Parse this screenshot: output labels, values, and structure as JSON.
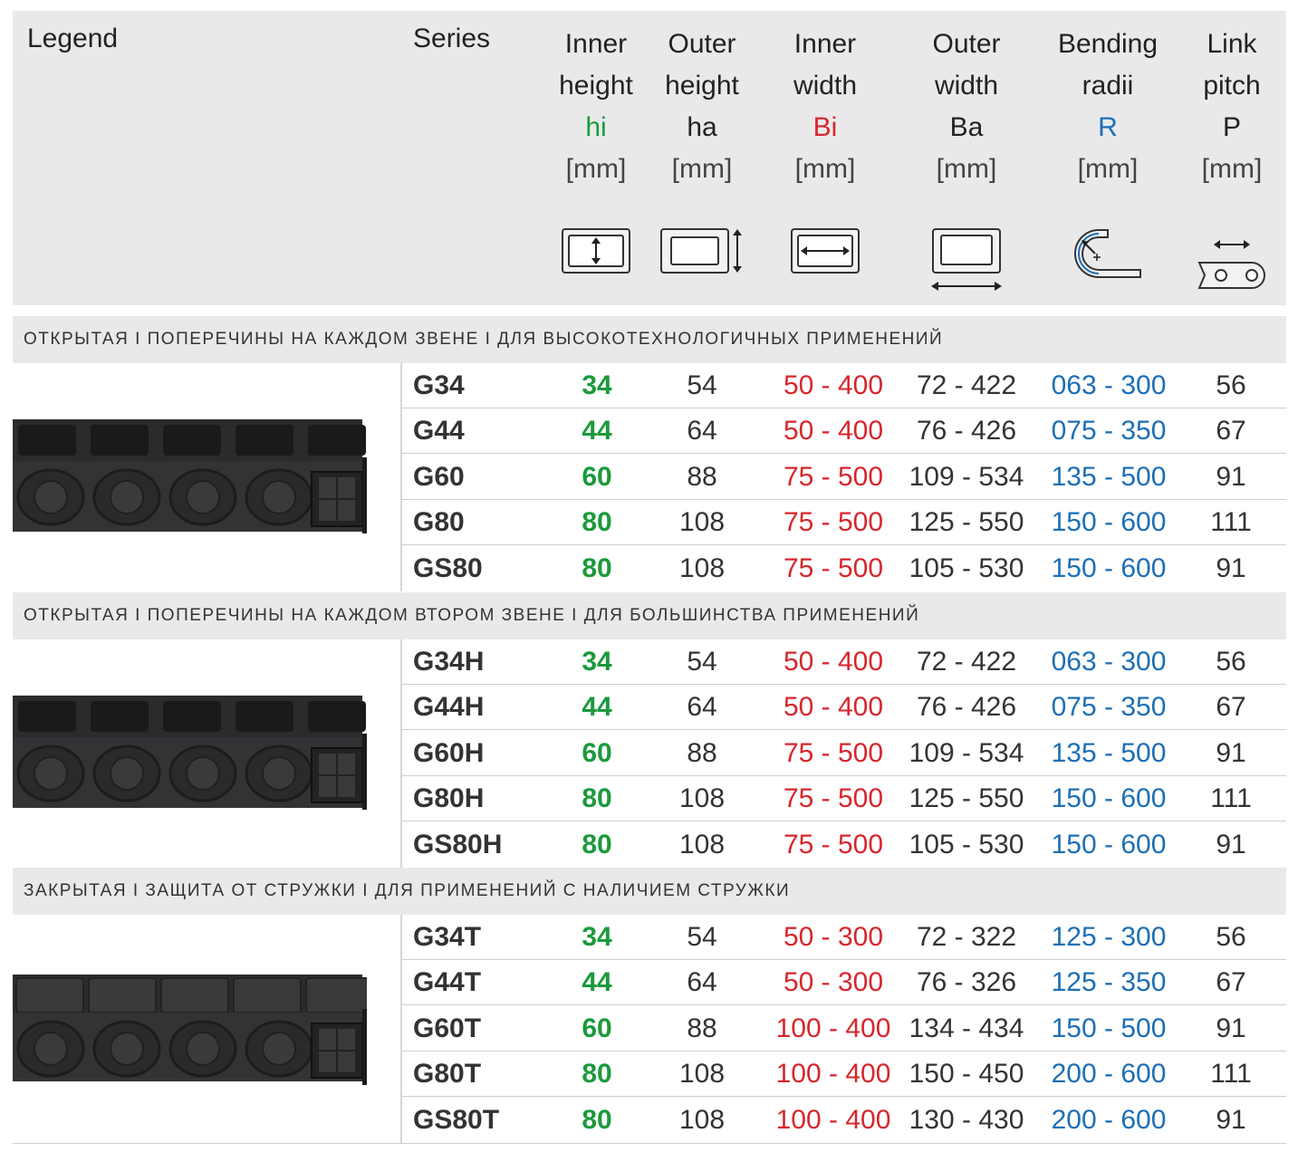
{
  "header": {
    "legend": "Legend",
    "series": "Series",
    "columns": [
      {
        "l1": "Inner",
        "l2": "height",
        "sym": "hi",
        "sym_color": "#1b9a3c",
        "unit": "[mm]",
        "icon": "inner-height-icon"
      },
      {
        "l1": "Outer",
        "l2": "height",
        "sym": "ha",
        "sym_color": "#222222",
        "unit": "[mm]",
        "icon": "outer-height-icon"
      },
      {
        "l1": "Inner",
        "l2": "width",
        "sym": "Bi",
        "sym_color": "#d7262c",
        "unit": "[mm]",
        "icon": "inner-width-icon"
      },
      {
        "l1": "Outer",
        "l2": "width",
        "sym": "Ba",
        "sym_color": "#222222",
        "unit": "[mm]",
        "icon": "outer-width-icon"
      },
      {
        "l1": "Bending",
        "l2": "radii",
        "sym": "R",
        "sym_color": "#1d6fb5",
        "unit": "[mm]",
        "icon": "bending-radius-icon"
      },
      {
        "l1": "Link",
        "l2": "pitch",
        "sym": "P",
        "sym_color": "#222222",
        "unit": "[mm]",
        "icon": "link-pitch-icon"
      }
    ]
  },
  "sections": [
    {
      "title": "ОТКРЫТАЯ I ПОПЕРЕЧИНЫ НА КАЖДОМ ЗВЕНЕ I ДЛЯ ВЫСОКОТЕХНОЛОГИЧНЫХ ПРИМЕНЕНИЙ",
      "image": "open-chain-every-link-image",
      "rows": [
        {
          "series": "G34",
          "hi": "34",
          "ha": "54",
          "bi": "50 - 400",
          "ba": "72 - 422",
          "r": "063 - 300",
          "p": "56"
        },
        {
          "series": "G44",
          "hi": "44",
          "ha": "64",
          "bi": "50 - 400",
          "ba": "76 - 426",
          "r": "075 - 350",
          "p": "67"
        },
        {
          "series": "G60",
          "hi": "60",
          "ha": "88",
          "bi": "75 - 500",
          "ba": "109 - 534",
          "r": "135 - 500",
          "p": "91"
        },
        {
          "series": "G80",
          "hi": "80",
          "ha": "108",
          "bi": "75 - 500",
          "ba": "125 - 550",
          "r": "150 - 600",
          "p": "111"
        },
        {
          "series": "GS80",
          "hi": "80",
          "ha": "108",
          "bi": "75 - 500",
          "ba": "105 - 530",
          "r": "150 - 600",
          "p": "91"
        }
      ]
    },
    {
      "title": "ОТКРЫТАЯ I ПОПЕРЕЧИНЫ НА КАЖДОМ ВТОРОМ ЗВЕНЕ I ДЛЯ БОЛЬШИНСТВА ПРИМЕНЕНИЙ",
      "image": "open-chain-every-second-link-image",
      "rows": [
        {
          "series": "G34H",
          "hi": "34",
          "ha": "54",
          "bi": "50 - 400",
          "ba": "72 - 422",
          "r": "063 - 300",
          "p": "56"
        },
        {
          "series": "G44H",
          "hi": "44",
          "ha": "64",
          "bi": "50 - 400",
          "ba": "76 - 426",
          "r": "075 - 350",
          "p": "67"
        },
        {
          "series": "G60H",
          "hi": "60",
          "ha": "88",
          "bi": "75 - 500",
          "ba": "109 - 534",
          "r": "135 - 500",
          "p": "91"
        },
        {
          "series": "G80H",
          "hi": "80",
          "ha": "108",
          "bi": "75 - 500",
          "ba": "125 - 550",
          "r": "150 - 600",
          "p": "111"
        },
        {
          "series": "GS80H",
          "hi": "80",
          "ha": "108",
          "bi": "75 - 500",
          "ba": "105 - 530",
          "r": "150 - 600",
          "p": "91"
        }
      ]
    },
    {
      "title": "ЗАКРЫТАЯ I ЗАЩИТА ОТ СТРУЖКИ I ДЛЯ ПРИМЕНЕНИЙ С НАЛИЧИЕМ СТРУЖКИ",
      "image": "closed-chain-chip-protection-image",
      "rows": [
        {
          "series": "G34T",
          "hi": "34",
          "ha": "54",
          "bi": "50 - 300",
          "ba": "72 - 322",
          "r": "125 - 300",
          "p": "56"
        },
        {
          "series": "G44T",
          "hi": "44",
          "ha": "64",
          "bi": "50 - 300",
          "ba": "76 - 326",
          "r": "125 - 350",
          "p": "67"
        },
        {
          "series": "G60T",
          "hi": "60",
          "ha": "88",
          "bi": "100 - 400",
          "ba": "134 - 434",
          "r": "150 - 500",
          "p": "91"
        },
        {
          "series": "G80T",
          "hi": "80",
          "ha": "108",
          "bi": "100 - 400",
          "ba": "150 - 450",
          "r": "200 - 600",
          "p": "111"
        },
        {
          "series": "GS80T",
          "hi": "80",
          "ha": "108",
          "bi": "100 - 400",
          "ba": "130 - 430",
          "r": "200 - 600",
          "p": "91"
        }
      ]
    }
  ]
}
